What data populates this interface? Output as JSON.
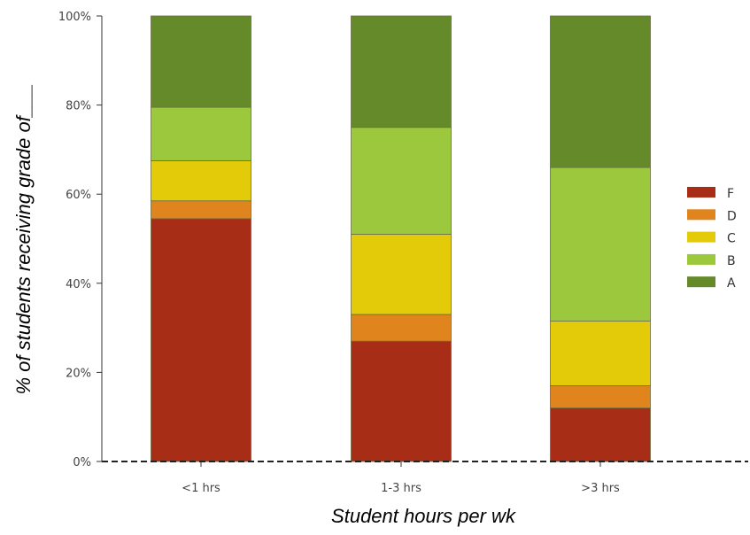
{
  "chart_data": {
    "type": "bar",
    "stacked": true,
    "xlabel": "Student hours per wk",
    "ylabel": "% of students receiving grade of___",
    "categories": [
      "<1 hrs",
      "1-3 hrs",
      ">3 hrs"
    ],
    "series": [
      {
        "name": "F",
        "color": "#a82d17",
        "values": [
          54.5,
          27,
          12
        ]
      },
      {
        "name": "D",
        "color": "#e0841e",
        "values": [
          4,
          6,
          5
        ]
      },
      {
        "name": "C",
        "color": "#e3cb0a",
        "values": [
          9,
          18,
          14.5
        ]
      },
      {
        "name": "B",
        "color": "#9bc83c",
        "values": [
          12,
          24,
          34.5
        ]
      },
      {
        "name": "A",
        "color": "#648a2a",
        "values": [
          20.5,
          25,
          34
        ]
      }
    ],
    "ylim": [
      0,
      100
    ],
    "yticks": [
      {
        "value": 0,
        "label": "0%"
      },
      {
        "value": 20,
        "label": "20%"
      },
      {
        "value": 40,
        "label": "40%"
      },
      {
        "value": 60,
        "label": "60%"
      },
      {
        "value": 80,
        "label": "80%"
      },
      {
        "value": 100,
        "label": "100%"
      }
    ],
    "legend": {
      "position": "right",
      "order": [
        "F",
        "D",
        "C",
        "B",
        "A"
      ]
    },
    "baseline": {
      "value": 0,
      "style": "dashed",
      "color": "#222222"
    },
    "grid": false
  }
}
